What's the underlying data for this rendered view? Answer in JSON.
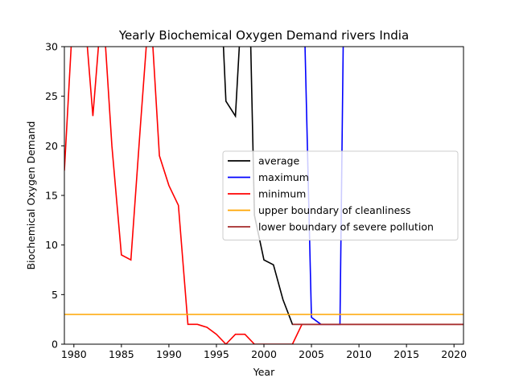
{
  "chart_data": {
    "type": "line",
    "title": "Yearly Biochemical Oxygen Demand rivers India",
    "xlabel": "Year",
    "ylabel": "Biochemical Oxygen Demand",
    "xlim": [
      1979,
      2021
    ],
    "ylim": [
      0,
      30
    ],
    "xticks": [
      "1980",
      "1985",
      "1990",
      "1995",
      "2000",
      "2005",
      "2010",
      "2015",
      "2020"
    ],
    "yticks": [
      "0",
      "5",
      "10",
      "15",
      "20",
      "25",
      "30"
    ],
    "grid": false,
    "legend_position": "center-right",
    "series": [
      {
        "name": "average",
        "color": "#000000",
        "x": [
          1995.5,
          1996,
          1997,
          1997.7,
          1998.5,
          1999,
          2000,
          2001,
          2002,
          2003,
          2004,
          2005,
          2006,
          2007,
          2008,
          2009,
          2010,
          2015,
          2021
        ],
        "y": [
          35,
          24.5,
          23,
          35,
          35,
          13,
          8.5,
          8,
          4.5,
          2,
          2,
          2,
          2,
          2,
          2,
          2,
          2,
          2,
          2
        ]
      },
      {
        "name": "maximum",
        "color": "#0000ff",
        "x": [
          2004.2,
          2005,
          2006,
          2007,
          2008,
          2008.5,
          2010,
          2015,
          2021
        ],
        "y": [
          35,
          2.7,
          2,
          2,
          2,
          35,
          2,
          2,
          2
        ],
        "draw": [
          [
            2004.2,
            35
          ],
          [
            2005,
            2.7
          ],
          [
            2006,
            2
          ],
          [
            2007,
            2
          ],
          [
            2008,
            2
          ],
          [
            2008.4,
            35
          ]
        ]
      },
      {
        "name": "minimum",
        "color": "#ff0000",
        "x": [
          1979,
          1980,
          1981,
          1982,
          1983,
          1984,
          1985,
          1986,
          1987,
          1988,
          1989,
          1990,
          1991,
          1992,
          1993,
          1994,
          1995,
          1996,
          1997,
          1998,
          1999,
          2000,
          2001,
          2002,
          2003,
          2004,
          2005,
          2010,
          2015,
          2021
        ],
        "y": [
          17.5,
          35,
          35,
          23,
          35,
          20,
          9,
          8.5,
          22,
          35,
          19,
          16,
          14,
          2,
          2,
          1.7,
          1,
          0,
          1,
          1,
          0,
          0,
          0,
          0,
          0,
          2,
          2,
          2,
          2,
          2
        ]
      },
      {
        "name": "upper boundary of cleanliness",
        "color": "#ffa500",
        "x": [
          1979,
          2021
        ],
        "y": [
          3,
          3
        ]
      },
      {
        "name": "lower boundary of severe pollution",
        "color": "#a52a2a",
        "x": [
          2003,
          2021
        ],
        "y": [
          2,
          2
        ]
      }
    ]
  }
}
